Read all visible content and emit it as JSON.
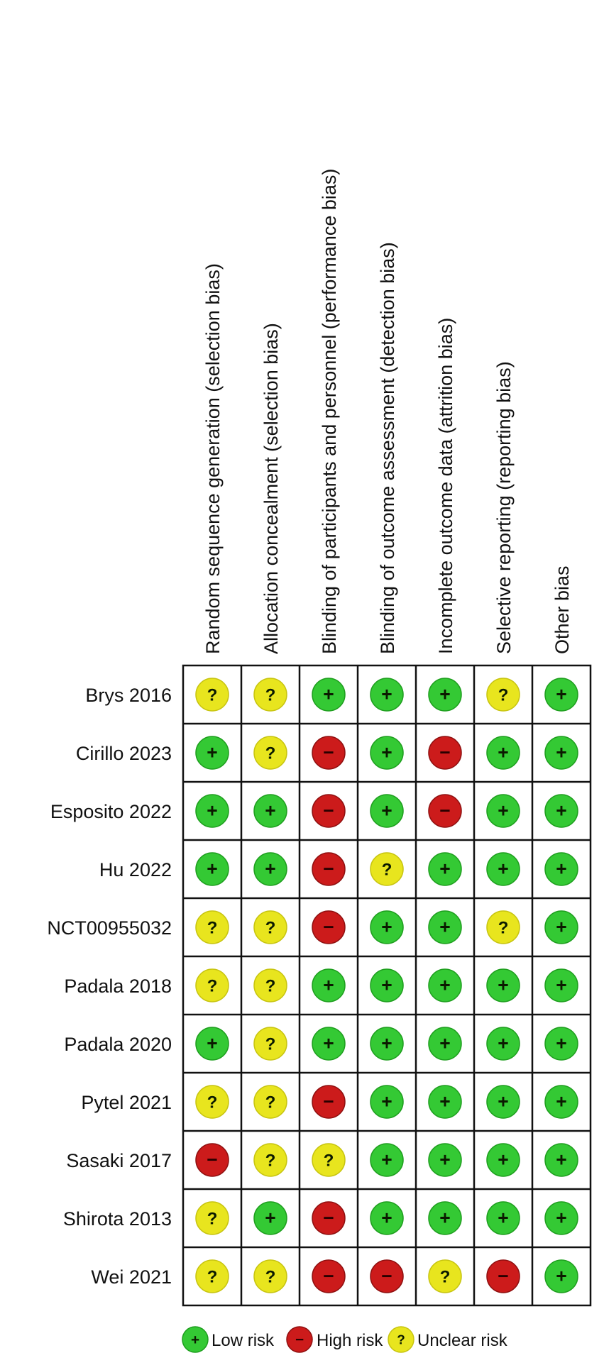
{
  "chart_data": {
    "type": "table",
    "domains": [
      "Random sequence generation (selection bias)",
      "Allocation concealment (selection bias)",
      "Blinding of participants and personnel (performance bias)",
      "Blinding of outcome assessment (detection bias)",
      "Incomplete outcome data (attrition bias)",
      "Selective reporting (reporting bias)",
      "Other bias"
    ],
    "studies": [
      {
        "name": "Brys 2016",
        "ratings": [
          "unclear",
          "unclear",
          "low",
          "low",
          "low",
          "unclear",
          "low"
        ]
      },
      {
        "name": "Cirillo 2023",
        "ratings": [
          "low",
          "unclear",
          "high",
          "low",
          "high",
          "low",
          "low"
        ]
      },
      {
        "name": "Esposito 2022",
        "ratings": [
          "low",
          "low",
          "high",
          "low",
          "high",
          "low",
          "low"
        ]
      },
      {
        "name": "Hu 2022",
        "ratings": [
          "low",
          "low",
          "high",
          "unclear",
          "low",
          "low",
          "low"
        ]
      },
      {
        "name": "NCT00955032",
        "ratings": [
          "unclear",
          "unclear",
          "high",
          "low",
          "low",
          "unclear",
          "low"
        ]
      },
      {
        "name": "Padala 2018",
        "ratings": [
          "unclear",
          "unclear",
          "low",
          "low",
          "low",
          "low",
          "low"
        ]
      },
      {
        "name": "Padala 2020",
        "ratings": [
          "low",
          "unclear",
          "low",
          "low",
          "low",
          "low",
          "low"
        ]
      },
      {
        "name": "Pytel 2021",
        "ratings": [
          "unclear",
          "unclear",
          "high",
          "low",
          "low",
          "low",
          "low"
        ]
      },
      {
        "name": "Sasaki 2017",
        "ratings": [
          "high",
          "unclear",
          "unclear",
          "low",
          "low",
          "low",
          "low"
        ]
      },
      {
        "name": "Shirota 2013",
        "ratings": [
          "unclear",
          "low",
          "high",
          "low",
          "low",
          "low",
          "low"
        ]
      },
      {
        "name": "Wei 2021",
        "ratings": [
          "unclear",
          "unclear",
          "high",
          "high",
          "unclear",
          "high",
          "low"
        ]
      }
    ],
    "legend": [
      {
        "key": "low",
        "label": "Low risk"
      },
      {
        "key": "high",
        "label": "High risk"
      },
      {
        "key": "unclear",
        "label": "Unclear risk"
      }
    ],
    "symbols": {
      "low": "+",
      "high": "−",
      "unclear": "?"
    },
    "colors": {
      "low": "#34c934",
      "low_stroke": "#1e9e1e",
      "high": "#cc1b1b",
      "high_stroke": "#8f1010",
      "unclear": "#e8e51e",
      "unclear_stroke": "#c7c410",
      "grid": "#111111"
    }
  }
}
